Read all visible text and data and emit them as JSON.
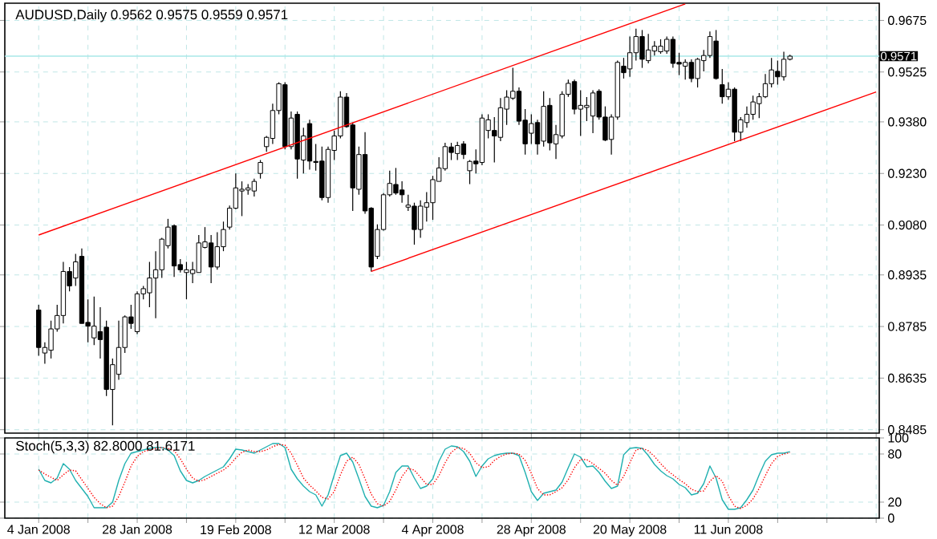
{
  "chart_data": [
    {
      "type": "candlestick",
      "title": "AUDUSD,Daily  0.9562 0.9575 0.9559 0.9571",
      "categories": [
        null,
        null,
        null,
        null,
        null,
        null,
        null,
        null,
        null,
        null,
        null,
        null,
        null,
        null,
        null,
        null,
        null,
        null,
        null,
        null,
        null,
        null,
        null,
        null,
        null,
        null,
        null,
        null,
        null,
        null,
        null,
        null,
        null,
        null,
        null,
        null,
        null,
        null,
        null,
        null,
        null,
        null,
        null,
        null,
        null,
        null,
        null,
        null,
        null,
        null,
        null,
        null,
        null,
        null,
        null,
        null,
        null,
        null,
        null,
        null,
        null,
        null,
        null,
        null,
        null,
        null,
        null,
        null,
        null,
        null,
        null,
        null,
        null,
        null,
        null,
        null,
        null,
        null,
        null,
        null,
        null,
        null,
        null,
        null,
        null,
        null,
        null,
        null,
        null,
        null,
        null,
        null,
        null,
        null,
        null,
        null,
        null,
        null,
        null,
        null,
        null,
        null,
        null,
        null,
        null,
        null,
        null,
        null,
        null,
        null,
        null,
        null,
        null,
        null,
        null,
        null,
        null,
        null,
        null,
        null,
        null,
        null,
        null,
        null,
        null,
        null,
        null,
        null,
        null,
        null,
        null,
        null,
        null,
        null,
        null,
        null,
        null,
        null,
        null,
        null,
        null,
        null
      ],
      "ohlc": [
        null,
        null,
        null,
        null,
        null,
        [
          0.8833,
          0.8848,
          0.87,
          0.8724
        ],
        [
          0.8708,
          0.8739,
          0.8677,
          0.8724
        ],
        [
          0.8716,
          0.8802,
          0.8692,
          0.8778
        ],
        [
          0.8778,
          0.8848,
          0.877,
          0.8817
        ],
        [
          0.8817,
          0.8973,
          0.8794,
          0.8945
        ],
        [
          0.8945,
          0.8958,
          0.8887,
          0.8903
        ],
        [
          0.8926,
          0.8996,
          0.8903,
          0.8973
        ],
        [
          0.8989,
          0.9012,
          0.8794,
          0.8794
        ],
        [
          0.8797,
          0.8864,
          0.8739,
          0.8786
        ],
        [
          0.8752,
          0.8872,
          0.8731,
          0.8786
        ],
        [
          0.877,
          0.8841,
          0.8692,
          0.8747
        ],
        [
          0.8783,
          0.8802,
          0.8583,
          0.8602
        ],
        [
          0.8602,
          0.8692,
          0.8498,
          0.8674
        ],
        [
          0.8646,
          0.8802,
          0.863,
          0.8724
        ],
        [
          0.8724,
          0.8817,
          0.8708,
          0.8813
        ],
        [
          0.8813,
          0.8848,
          0.8778,
          0.8794
        ],
        [
          0.877,
          0.8887,
          0.8763,
          0.888
        ],
        [
          0.888,
          0.8903,
          0.8864,
          0.8895
        ],
        [
          0.8883,
          0.8973,
          0.8841,
          0.8926
        ],
        [
          0.8926,
          0.9004,
          0.8809,
          0.895
        ],
        [
          0.895,
          0.9043,
          0.8926,
          0.9039
        ],
        [
          0.902,
          0.9098,
          0.9012,
          0.9074
        ],
        [
          0.9078,
          0.9082,
          0.8929,
          0.8961
        ],
        [
          0.8965,
          0.8981,
          0.8942,
          0.895
        ],
        [
          0.8942,
          0.8973,
          0.8864,
          0.895
        ],
        [
          0.8939,
          0.8973,
          0.8911,
          0.895
        ],
        [
          0.8942,
          0.9051,
          0.8942,
          0.9028
        ],
        [
          0.9015,
          0.9074,
          0.9012,
          0.9031
        ],
        [
          0.9028,
          0.9051,
          0.8911,
          0.8958
        ],
        [
          0.8958,
          0.9059,
          0.895,
          0.9017
        ],
        [
          0.9017,
          0.909,
          0.9004,
          0.9067
        ],
        [
          0.9074,
          0.9137,
          0.9067,
          0.9129
        ],
        [
          0.9129,
          0.923,
          0.9126,
          0.9188
        ],
        [
          0.9179,
          0.9207,
          0.9106,
          0.9184
        ],
        [
          0.9182,
          0.9199,
          0.9168,
          0.9188
        ],
        [
          0.9179,
          0.9215,
          0.9163,
          0.9207
        ],
        [
          0.923,
          0.9269,
          0.9215,
          0.9262
        ],
        [
          0.9308,
          0.9339,
          0.9293,
          0.9335
        ],
        [
          0.9332,
          0.9433,
          0.9316,
          0.9413
        ],
        [
          0.9413,
          0.9495,
          0.9402,
          0.9491
        ],
        [
          0.9488,
          0.9495,
          0.93,
          0.9308
        ],
        [
          0.9308,
          0.941,
          0.93,
          0.9391
        ],
        [
          0.9402,
          0.941,
          0.9215,
          0.9272
        ],
        [
          0.9269,
          0.9363,
          0.923,
          0.9339
        ],
        [
          0.9375,
          0.9386,
          0.9241,
          0.9266
        ],
        [
          0.9265,
          0.9316,
          0.9238,
          0.9262
        ],
        [
          0.9266,
          0.9308,
          0.9152,
          0.916
        ],
        [
          0.916,
          0.9308,
          0.9145,
          0.93
        ],
        [
          0.9297,
          0.9355,
          0.9269,
          0.9339
        ],
        [
          0.9339,
          0.9469,
          0.9332,
          0.9452
        ],
        [
          0.9452,
          0.9464,
          0.9363,
          0.9366
        ],
        [
          0.9371,
          0.9378,
          0.9121,
          0.9188
        ],
        [
          0.9184,
          0.9308,
          0.9168,
          0.9285
        ],
        [
          0.9285,
          0.935,
          0.9113,
          0.9121
        ],
        [
          0.9129,
          0.9132,
          0.8945,
          0.8958
        ],
        [
          0.8989,
          0.9082,
          0.8981,
          0.9067
        ],
        [
          0.9067,
          0.9173,
          0.9064,
          0.9168
        ],
        [
          0.9168,
          0.9238,
          0.9163,
          0.9201
        ],
        [
          0.9198,
          0.9246,
          0.9168,
          0.9173
        ],
        [
          0.9182,
          0.9207,
          0.9145,
          0.9168
        ],
        [
          0.9132,
          0.9168,
          0.9121,
          0.9138
        ],
        [
          0.9135,
          0.9145,
          0.9023,
          0.9067
        ],
        [
          0.9067,
          0.9152,
          0.9043,
          0.9135
        ],
        [
          0.9132,
          0.9176,
          0.909,
          0.9145
        ],
        [
          0.9145,
          0.9223,
          0.9095,
          0.9212
        ],
        [
          0.9207,
          0.9277,
          0.9207,
          0.9246
        ],
        [
          0.9244,
          0.9319,
          0.9238,
          0.9308
        ],
        [
          0.9307,
          0.9319,
          0.9269,
          0.9291
        ],
        [
          0.9288,
          0.9322,
          0.9269,
          0.9311
        ],
        [
          0.9316,
          0.9324,
          0.9272,
          0.9285
        ],
        [
          0.9238,
          0.9269,
          0.9199,
          0.9265
        ],
        [
          0.9266,
          0.93,
          0.923,
          0.9258
        ],
        [
          0.9262,
          0.9402,
          0.9254,
          0.9391
        ],
        [
          0.9355,
          0.9402,
          0.9332,
          0.9386
        ],
        [
          0.9355,
          0.9394,
          0.9262,
          0.9339
        ],
        [
          0.9335,
          0.9449,
          0.9324,
          0.9421
        ],
        [
          0.9417,
          0.9472,
          0.9371,
          0.9452
        ],
        [
          0.9449,
          0.9537,
          0.9444,
          0.9469
        ],
        [
          0.9469,
          0.948,
          0.9371,
          0.9382
        ],
        [
          0.9385,
          0.9417,
          0.9285,
          0.9316
        ],
        [
          0.9347,
          0.9402,
          0.9316,
          0.9375
        ],
        [
          0.9378,
          0.9386,
          0.9285,
          0.9316
        ],
        [
          0.9324,
          0.9469,
          0.9308,
          0.9425
        ],
        [
          0.9428,
          0.9449,
          0.9297,
          0.9319
        ],
        [
          0.9316,
          0.9371,
          0.9272,
          0.9343
        ],
        [
          0.9339,
          0.9469,
          0.9332,
          0.946
        ],
        [
          0.946,
          0.9503,
          0.9453,
          0.9492
        ],
        [
          0.9497,
          0.9503,
          0.9402,
          0.9417
        ],
        [
          0.9417,
          0.9472,
          0.9339,
          0.9428
        ],
        [
          0.9422,
          0.9452,
          0.9382,
          0.9428
        ],
        [
          0.9397,
          0.9472,
          0.9347,
          0.9464
        ],
        [
          0.9469,
          0.9475,
          0.9386,
          0.9394
        ],
        [
          0.9394,
          0.9425,
          0.9324,
          0.9327
        ],
        [
          0.9329,
          0.9402,
          0.9285,
          0.9394
        ],
        [
          0.9394,
          0.9558,
          0.9386,
          0.9553
        ],
        [
          0.9542,
          0.9566,
          0.9506,
          0.9523
        ],
        [
          0.9534,
          0.9628,
          0.9511,
          0.9581
        ],
        [
          0.9581,
          0.9651,
          0.9558,
          0.9628
        ],
        [
          0.9628,
          0.9647,
          0.9537,
          0.9562
        ],
        [
          0.9558,
          0.9636,
          0.955,
          0.9589
        ],
        [
          0.9586,
          0.9615,
          0.9573,
          0.96
        ],
        [
          0.9584,
          0.962,
          0.9578,
          0.96
        ],
        [
          0.9586,
          0.9628,
          0.9578,
          0.962
        ],
        [
          0.962,
          0.9628,
          0.9537,
          0.955
        ],
        [
          0.9553,
          0.9581,
          0.9516,
          0.9548
        ],
        [
          0.9542,
          0.9562,
          0.9503,
          0.9553
        ],
        [
          0.9553,
          0.9562,
          0.9495,
          0.9506
        ],
        [
          0.9506,
          0.9566,
          0.948,
          0.9562
        ],
        [
          0.9558,
          0.9589,
          0.9527,
          0.9573
        ],
        [
          0.9573,
          0.9643,
          0.9566,
          0.9628
        ],
        [
          0.9615,
          0.9647,
          0.9503,
          0.9506
        ],
        [
          0.9488,
          0.9534,
          0.9433,
          0.9453
        ],
        [
          0.9453,
          0.9495,
          0.9444,
          0.9475
        ],
        [
          0.9475,
          0.948,
          0.9324,
          0.935
        ],
        [
          0.935,
          0.9394,
          0.9324,
          0.9386
        ],
        [
          0.9378,
          0.9425,
          0.9363,
          0.9402
        ],
        [
          0.9402,
          0.9456,
          0.9386,
          0.9438
        ],
        [
          0.9433,
          0.9464,
          0.9391,
          0.9453
        ],
        [
          0.9453,
          0.9519,
          0.9449,
          0.9491
        ],
        [
          0.9491,
          0.9566,
          0.948,
          0.9531
        ],
        [
          0.9527,
          0.9558,
          0.9488,
          0.9511
        ],
        [
          0.9511,
          0.9584,
          0.95,
          0.9562
        ],
        [
          0.9562,
          0.9575,
          0.9559,
          0.9571
        ],
        null,
        null,
        null,
        null,
        null,
        null,
        null,
        null,
        null,
        null,
        null,
        null,
        null,
        null
      ],
      "series": [
        {
          "type": "line",
          "color": "#ff0000",
          "values": [
            null,
            null,
            null,
            null,
            null,
            0.9051,
            null,
            null,
            null,
            null,
            null,
            null,
            null,
            null,
            null,
            null,
            null,
            null,
            null,
            null,
            null,
            null,
            null,
            null,
            null,
            null,
            null,
            null,
            null,
            null,
            null,
            null,
            null,
            null,
            null,
            null,
            null,
            null,
            null,
            null,
            null,
            null,
            null,
            null,
            null,
            null,
            null,
            null,
            null,
            null,
            null,
            null,
            null,
            null,
            null,
            null,
            null,
            null,
            null,
            null,
            null,
            null,
            null,
            null,
            null,
            null,
            null,
            null,
            null,
            null,
            null,
            null,
            null,
            null,
            null,
            null,
            null,
            null,
            null,
            null,
            null,
            null,
            null,
            null,
            null,
            null,
            null,
            null,
            null,
            null,
            null,
            null,
            null,
            null,
            null,
            null,
            null,
            null,
            null,
            null,
            null,
            null,
            null,
            null,
            null,
            null,
            null,
            null,
            null,
            null,
            0.9723,
            null,
            null,
            null,
            null,
            null,
            null,
            null,
            null,
            null,
            null,
            null,
            null,
            null,
            null,
            null,
            null,
            null,
            null,
            null,
            null,
            null,
            null,
            null,
            null,
            null,
            null,
            null,
            null,
            null,
            null,
            null
          ]
        },
        {
          "type": "line",
          "color": "#ff0000",
          "values": [
            null,
            null,
            null,
            null,
            null,
            null,
            null,
            null,
            null,
            null,
            null,
            null,
            null,
            null,
            null,
            null,
            null,
            null,
            null,
            null,
            null,
            null,
            null,
            null,
            null,
            null,
            null,
            null,
            null,
            null,
            null,
            null,
            null,
            null,
            null,
            null,
            null,
            null,
            null,
            null,
            null,
            null,
            null,
            null,
            null,
            null,
            null,
            null,
            null,
            null,
            null,
            null,
            null,
            null,
            null,
            null,
            null,
            null,
            null,
            0.8945,
            null,
            null,
            null,
            null,
            null,
            null,
            null,
            null,
            null,
            null,
            null,
            null,
            null,
            null,
            null,
            null,
            null,
            null,
            null,
            null,
            null,
            null,
            null,
            null,
            null,
            null,
            null,
            null,
            null,
            null,
            null,
            null,
            null,
            null,
            null,
            null,
            null,
            null,
            null,
            null,
            null,
            null,
            null,
            null,
            null,
            null,
            null,
            null,
            null,
            null,
            null,
            null,
            null,
            null,
            null,
            null,
            null,
            null,
            null,
            null,
            null,
            null,
            null,
            null,
            null,
            null,
            null,
            null,
            null,
            null,
            null,
            null,
            null,
            null,
            null,
            null,
            null,
            null,
            null,
            null,
            null,
            0.9467
          ]
        }
      ],
      "ylim": [
        0.8475,
        0.9725
      ],
      "yticks": [
        0.8485,
        0.8635,
        0.8785,
        0.8935,
        {
          "value": 0.908,
          "label": "0.9080"
        },
        {
          "value": 0.923,
          "label": "0.9230"
        },
        {
          "value": 0.938,
          "label": "0.9380"
        },
        0.9525,
        0.9675
      ],
      "ref_lines": [
        {
          "axis": "y",
          "value": 0.9571,
          "label": "0.9571",
          "color": "#a8e8e8"
        }
      ],
      "grid": true,
      "tick_labels": "y"
    },
    {
      "type": "line",
      "title": "Stoch(5,3,3) 82.8000 81.6171",
      "categories": [
        null,
        null,
        null,
        null,
        null,
        "4 Jan 2008",
        null,
        null,
        null,
        null,
        null,
        null,
        null,
        null,
        null,
        null,
        null,
        null,
        null,
        null,
        null,
        "28 Jan 2008",
        null,
        null,
        null,
        null,
        null,
        null,
        null,
        null,
        null,
        null,
        null,
        null,
        null,
        null,
        null,
        "19 Feb 2008",
        null,
        null,
        null,
        null,
        null,
        null,
        null,
        null,
        null,
        null,
        null,
        null,
        null,
        null,
        null,
        "12 Mar 2008",
        null,
        null,
        null,
        null,
        null,
        null,
        null,
        null,
        null,
        null,
        null,
        null,
        null,
        null,
        null,
        "4 Apr 2008",
        null,
        null,
        null,
        null,
        null,
        null,
        null,
        null,
        null,
        null,
        null,
        null,
        null,
        null,
        null,
        "28 Apr 2008",
        null,
        null,
        null,
        null,
        null,
        null,
        null,
        null,
        null,
        null,
        null,
        null,
        null,
        null,
        null,
        "20 May 2008",
        null,
        null,
        null,
        null,
        null,
        null,
        null,
        null,
        null,
        null,
        null,
        null,
        null,
        null,
        null,
        "11 Jun 2008",
        null,
        null,
        null,
        null,
        null,
        null,
        null,
        null,
        null,
        null,
        null,
        null,
        null,
        null,
        null,
        null,
        null,
        null,
        null,
        null,
        null,
        null,
        null,
        null
      ],
      "series": [
        {
          "color": "#20b0b0",
          "line_style": "solid",
          "values": [
            null,
            null,
            null,
            null,
            null,
            61,
            47,
            44,
            50,
            68,
            61,
            47,
            37,
            27,
            13,
            13,
            13,
            20,
            47,
            68,
            81,
            83,
            85,
            87,
            88,
            88,
            85,
            78,
            59,
            47,
            44,
            47,
            52,
            56,
            60,
            64,
            74,
            86,
            85,
            83,
            81,
            85,
            89,
            93,
            93,
            88,
            61,
            49,
            40,
            33,
            29,
            15,
            29,
            54,
            78,
            81,
            70,
            49,
            27,
            15,
            13,
            16,
            33,
            57,
            65,
            65,
            50,
            37,
            40,
            49,
            71,
            86,
            90,
            89,
            83,
            71,
            52,
            65,
            74,
            78,
            80,
            81,
            81,
            78,
            57,
            33,
            22,
            31,
            33,
            35,
            45,
            63,
            80,
            76,
            64,
            65,
            57,
            46,
            37,
            40,
            79,
            87,
            88,
            87,
            78,
            67,
            59,
            53,
            49,
            42,
            38,
            29,
            31,
            43,
            65,
            50,
            23,
            11,
            11,
            13,
            23,
            35,
            54,
            71,
            79,
            81,
            81,
            82.8,
            null,
            null,
            null,
            null,
            null,
            null,
            null,
            null,
            null,
            null,
            null,
            null,
            null,
            null
          ]
        },
        {
          "color": "#ff0000",
          "line_style": "dotted",
          "values": [
            null,
            null,
            null,
            null,
            null,
            60,
            55,
            51,
            47,
            54,
            60,
            59,
            48,
            37,
            26,
            18,
            13,
            15,
            27,
            45,
            65,
            77,
            83,
            85,
            87,
            88,
            87,
            84,
            74,
            61,
            50,
            46,
            48,
            52,
            56,
            60,
            66,
            75,
            82,
            85,
            83,
            83,
            85,
            89,
            92,
            91,
            81,
            66,
            50,
            41,
            34,
            26,
            24,
            33,
            54,
            71,
            76,
            67,
            49,
            30,
            18,
            15,
            21,
            35,
            52,
            62,
            60,
            51,
            42,
            42,
            53,
            69,
            82,
            88,
            87,
            81,
            69,
            63,
            64,
            72,
            77,
            80,
            81,
            80,
            72,
            56,
            37,
            29,
            29,
            33,
            38,
            48,
            63,
            73,
            73,
            68,
            62,
            56,
            47,
            41,
            52,
            69,
            85,
            87,
            84,
            77,
            68,
            60,
            54,
            48,
            43,
            36,
            33,
            34,
            46,
            53,
            46,
            28,
            15,
            12,
            16,
            24,
            37,
            53,
            68,
            77,
            80,
            81.6171,
            null,
            null,
            null,
            null,
            null,
            null,
            null,
            null,
            null,
            null,
            null,
            null,
            null,
            null
          ]
        }
      ],
      "ylim": [
        0,
        100
      ],
      "yticks": [
        0,
        20,
        80,
        100
      ],
      "grid": true
    }
  ]
}
